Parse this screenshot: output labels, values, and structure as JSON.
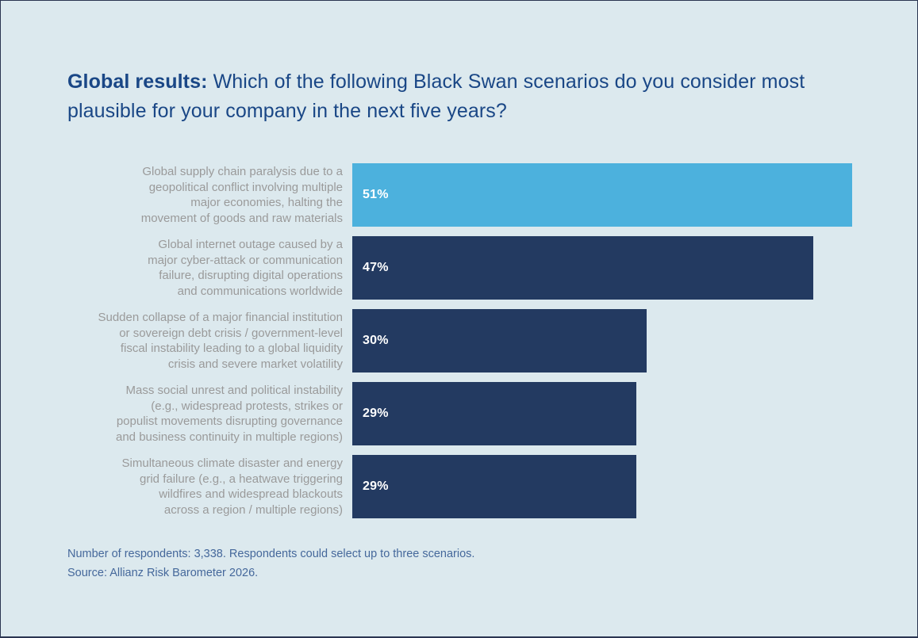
{
  "page": {
    "background_color": "#dce9ee",
    "border_color": "#2a3550"
  },
  "title": {
    "prefix": "Global results:",
    "question": " Which of the following Black Swan scenarios do you consider most plausible for your company in the next five years?",
    "color": "#1a4786"
  },
  "chart_data": {
    "type": "bar",
    "orientation": "horizontal",
    "title": "Global results: Which of the following Black Swan scenarios do you consider most plausible for your company in the next five years?",
    "categories": [
      "Global supply chain paralysis due to a\ngeopolitical conflict involving multiple\nmajor economies, halting the\nmovement of goods and raw materials",
      "Global internet outage caused by a\nmajor cyber-attack or communication\nfailure, disrupting digital operations\nand communications worldwide",
      "Sudden collapse of a major financial institution\nor sovereign debt crisis / government-level\nfiscal instability leading to a global liquidity\ncrisis and severe market volatility",
      "Mass social unrest and political instability\n(e.g., widespread protests, strikes or\npopulist movements disrupting governance\nand business continuity in multiple regions)",
      "Simultaneous climate disaster and energy\ngrid failure (e.g., a heatwave triggering\nwildfires and widespread blackouts\nacross a region / multiple regions)"
    ],
    "values": [
      51,
      47,
      30,
      29,
      29
    ],
    "value_labels": [
      "51%",
      "47%",
      "30%",
      "29%",
      "29%"
    ],
    "bar_colors": [
      "#4cb1dd",
      "#233a61",
      "#233a61",
      "#233a61",
      "#233a61"
    ],
    "xlim": [
      0,
      51
    ],
    "grid": false,
    "legend": false,
    "value_label_position": "inside-left",
    "value_label_color": "#ffffff",
    "category_label_color": "#9a9a9a"
  },
  "footnotes": {
    "respondents": "Number of respondents: 3,338. Respondents could select up to three scenarios.",
    "source": "Source: Allianz Risk Barometer 2026.",
    "color": "#45689b"
  }
}
